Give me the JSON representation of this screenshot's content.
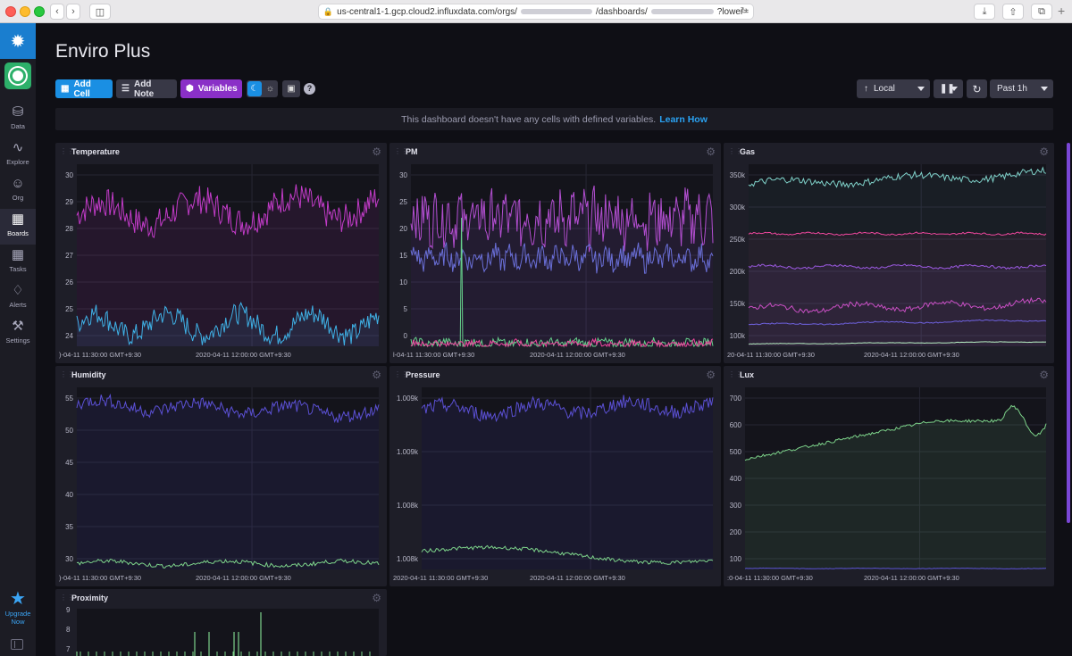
{
  "browser": {
    "url": "us-central1-1.gcp.cloud2.influxdata.com/orgs/",
    "url_rest": "/dashboards/",
    "url_tail": "?lower="
  },
  "nav": {
    "items": [
      {
        "label": "Data",
        "icon": "database-icon"
      },
      {
        "label": "Explore",
        "icon": "graph-icon"
      },
      {
        "label": "Org",
        "icon": "users-icon"
      },
      {
        "label": "Boards",
        "icon": "dashboards-icon",
        "active": true
      },
      {
        "label": "Tasks",
        "icon": "calendar-icon"
      },
      {
        "label": "Alerts",
        "icon": "bell-icon"
      },
      {
        "label": "Settings",
        "icon": "wrench-icon"
      }
    ],
    "upgrade_line1": "Upgrade",
    "upgrade_line2": "Now"
  },
  "dashboard": {
    "title": "Enviro Plus",
    "add_cell": "Add Cell",
    "add_note": "Add Note",
    "variables": "Variables",
    "timezone": "Local",
    "time_range": "Past 1h",
    "notice": "This dashboard doesn't have any cells with defined variables.",
    "notice_link": "Learn How"
  },
  "colors": {
    "accent": "#1a8fe3",
    "variables": "#8a30c7",
    "magenta": "#c13bc7",
    "cyan": "#3fb1e6",
    "indigo": "#5b50d4",
    "green": "#7dd38a",
    "pink": "#f0479e",
    "purple": "#9b59e0",
    "teal": "#7fd1c9"
  },
  "cells": [
    {
      "id": "temperature",
      "title": "Temperature",
      "y_ticks": [
        "30",
        "29",
        "28",
        "27",
        "26",
        "25",
        "24"
      ],
      "x_ticks": [
        ")-04-11 11:30:00 GMT+9:30",
        "2020-04-11 12:00:00 GMT+9:30"
      ],
      "series": [
        {
          "color": "#c13bc7",
          "fill": "rgba(193,59,199,0.12)"
        },
        {
          "color": "#3fb1e6",
          "fill": "rgba(63,177,230,0.12)"
        }
      ]
    },
    {
      "id": "pm",
      "title": "PM",
      "y_ticks": [
        "30",
        "25",
        "20",
        "15",
        "10",
        "5",
        "0"
      ],
      "x_ticks": [
        "l-04-11 11:30:00 GMT+9:30",
        "2020-04-11 12:00:00 GMT+9:30"
      ],
      "series": [
        {
          "color": "#b24ed0"
        },
        {
          "color": "#6a6fd8"
        },
        {
          "color": "#66d08b"
        },
        {
          "color": "#f0479e"
        }
      ]
    },
    {
      "id": "gas",
      "title": "Gas",
      "y_ticks": [
        "350k",
        "300k",
        "250k",
        "200k",
        "150k",
        "100k"
      ],
      "x_ticks": [
        "20-04-11 11:30:00 GMT+9:30",
        "2020-04-11 12:00:00 GMT+9:30"
      ],
      "series": [
        {
          "color": "#7fd1c9"
        },
        {
          "color": "#f0479e"
        },
        {
          "color": "#9b59e0"
        },
        {
          "color": "#c94fc4"
        },
        {
          "color": "#6f62e0"
        },
        {
          "color": "#b8f0c4"
        }
      ]
    },
    {
      "id": "humidity",
      "title": "Humidity",
      "y_ticks": [
        "55",
        "50",
        "45",
        "40",
        "35",
        "30"
      ],
      "x_ticks": [
        ")-04-11 11:30:00 GMT+9:30",
        "2020-04-11 12:00:00 GMT+9:30"
      ],
      "series": [
        {
          "color": "#5b50d4"
        },
        {
          "color": "#7dd38a"
        }
      ]
    },
    {
      "id": "pressure",
      "title": "Pressure",
      "y_ticks": [
        "1.009k",
        "1.009k",
        "1.008k",
        "1.008k"
      ],
      "x_ticks": [
        "2020-04-11 11:30:00 GMT+9:30",
        "2020-04-11 12:00:00 GMT+9:30"
      ],
      "series": [
        {
          "color": "#5b50d4"
        },
        {
          "color": "#7dd38a"
        }
      ]
    },
    {
      "id": "lux",
      "title": "Lux",
      "y_ticks": [
        "700",
        "600",
        "500",
        "400",
        "300",
        "200",
        "100"
      ],
      "x_ticks": [
        ":0-04-11 11:30:00 GMT+9:30",
        "2020-04-11 12:00:00 GMT+9:30"
      ],
      "series": [
        {
          "color": "#7dd38a"
        },
        {
          "color": "#5b50d4"
        }
      ]
    },
    {
      "id": "proximity",
      "title": "Proximity",
      "y_ticks": [
        "9",
        "8",
        "7"
      ],
      "x_ticks": [],
      "series": [
        {
          "color": "#7dd38a"
        }
      ]
    }
  ]
}
